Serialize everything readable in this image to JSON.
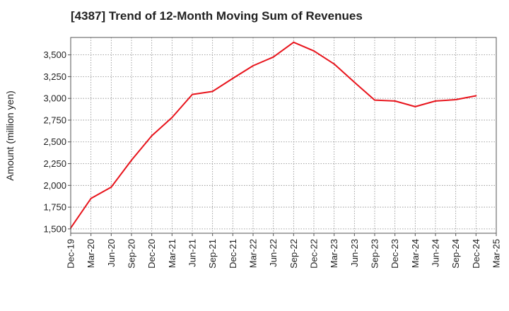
{
  "chart_data": {
    "type": "line",
    "title": "[4387]  Trend of 12-Month Moving Sum of Revenues",
    "xlabel": "",
    "ylabel": "Amount (million yen)",
    "categories": [
      "Dec-19",
      "Mar-20",
      "Jun-20",
      "Sep-20",
      "Dec-20",
      "Mar-21",
      "Jun-21",
      "Sep-21",
      "Dec-21",
      "Mar-22",
      "Jun-22",
      "Sep-22",
      "Dec-22",
      "Mar-23",
      "Jun-23",
      "Sep-23",
      "Dec-23",
      "Mar-24",
      "Jun-24",
      "Sep-24",
      "Dec-24",
      "Mar-25"
    ],
    "series": [
      {
        "color": "#e8141c",
        "values": [
          1510,
          1850,
          1980,
          2290,
          2570,
          2780,
          3045,
          3080,
          3230,
          3375,
          3475,
          3645,
          3545,
          3395,
          3185,
          2980,
          2970,
          2905,
          2970,
          2985,
          3030,
          null
        ]
      }
    ],
    "ylim": [
      1450,
      3700
    ],
    "yticks": [
      1500,
      1750,
      2000,
      2250,
      2500,
      2750,
      3000,
      3250,
      3500
    ],
    "ytick_labels": [
      "1,500",
      "1,750",
      "2,000",
      "2,250",
      "2,500",
      "2,750",
      "3,000",
      "3,250",
      "3,500"
    ],
    "grid": true,
    "legend": "none"
  }
}
